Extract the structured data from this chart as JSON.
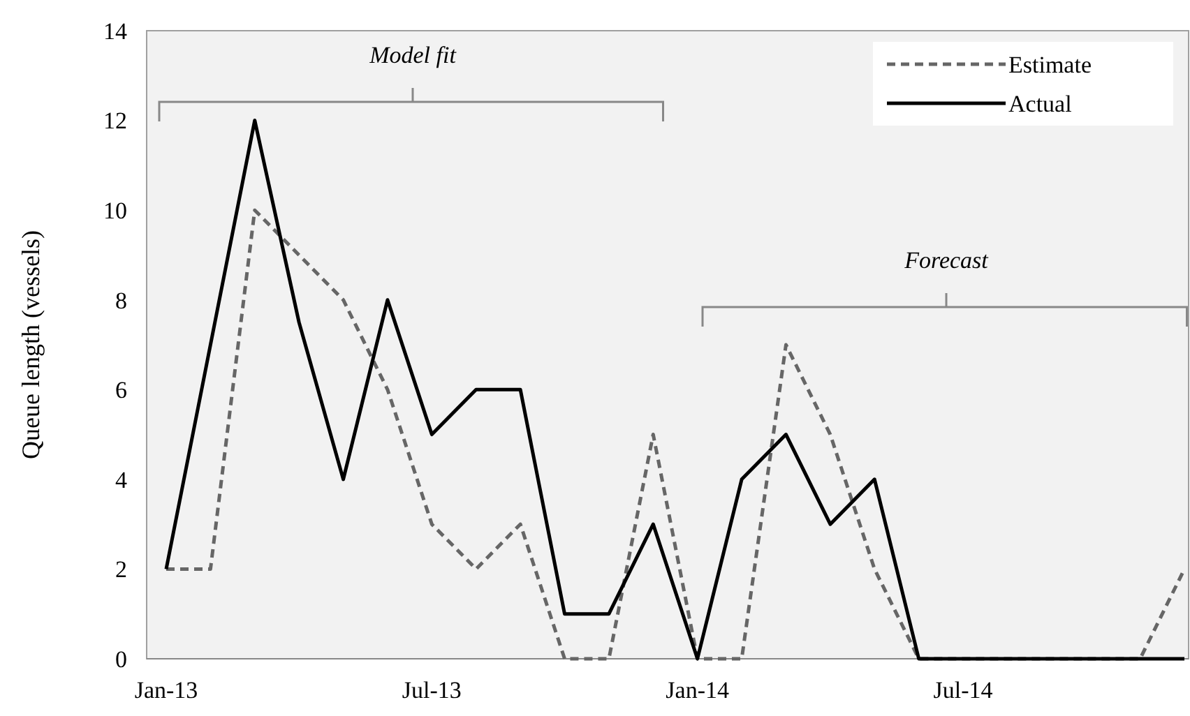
{
  "chart_data": {
    "type": "line",
    "ylabel": "Queue length (vessels)",
    "categories": [
      "Jan-13",
      null,
      null,
      null,
      null,
      null,
      "Jul-13",
      null,
      null,
      null,
      null,
      null,
      "Jan-14",
      null,
      null,
      null,
      null,
      null,
      "Jul-14",
      null,
      null,
      null,
      null,
      null
    ],
    "series": [
      {
        "name": "Estimate",
        "color": "#666666",
        "line_style": "dashed",
        "values": [
          2,
          2,
          10,
          9,
          8,
          6,
          3,
          2,
          3,
          0,
          0,
          5,
          0,
          0,
          7,
          5,
          2,
          0,
          0,
          0,
          0,
          0,
          0,
          2
        ]
      },
      {
        "name": "Actual",
        "color": "#000000",
        "line_style": "solid",
        "values": [
          2,
          7,
          12,
          7.5,
          4,
          8,
          5,
          6,
          6,
          1,
          1,
          3,
          0,
          4,
          5,
          3,
          4,
          0,
          0,
          0,
          0,
          0,
          0,
          0
        ]
      }
    ],
    "ylim": [
      0,
      14
    ],
    "yticks": [
      0,
      2,
      4,
      6,
      8,
      10,
      12,
      14
    ],
    "grid": false,
    "legend": "top right",
    "marker": "none",
    "annotations": [
      "Model fit",
      "Forecast"
    ]
  }
}
